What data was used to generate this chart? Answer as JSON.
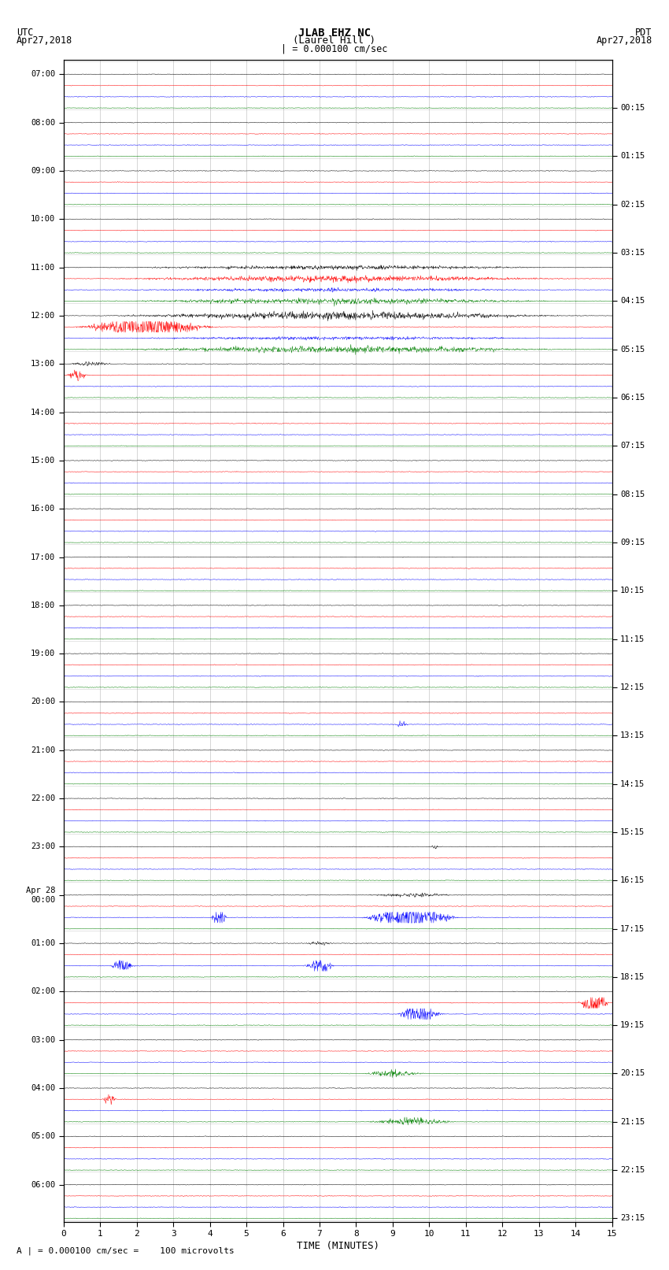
{
  "title_line1": "JLAB EHZ NC",
  "title_line2": "(Laurel Hill )",
  "scale_label": "| = 0.000100 cm/sec",
  "left_label": "UTC\nApr27,2018",
  "right_label": "PDT\nApr27,2018",
  "xlabel": "TIME (MINUTES)",
  "footer": "A | = 0.000100 cm/sec =    100 microvolts",
  "left_times": [
    "07:00",
    "08:00",
    "09:00",
    "10:00",
    "11:00",
    "12:00",
    "13:00",
    "14:00",
    "15:00",
    "16:00",
    "17:00",
    "18:00",
    "19:00",
    "20:00",
    "21:00",
    "22:00",
    "23:00",
    "Apr 28\n00:00",
    "01:00",
    "02:00",
    "03:00",
    "04:00",
    "05:00",
    "06:00"
  ],
  "right_times": [
    "00:15",
    "01:15",
    "02:15",
    "03:15",
    "04:15",
    "05:15",
    "06:15",
    "07:15",
    "08:15",
    "09:15",
    "10:15",
    "11:15",
    "12:15",
    "13:15",
    "14:15",
    "15:15",
    "16:15",
    "17:15",
    "18:15",
    "19:15",
    "20:15",
    "21:15",
    "22:15",
    "23:15"
  ],
  "n_rows": 24,
  "minutes_per_row": 15,
  "bg_color": "#ffffff",
  "colors_per_row": [
    "#000000",
    "#ff0000",
    "#0000ff",
    "#008000"
  ],
  "noise_amplitude": 0.018,
  "figwidth": 8.5,
  "figheight": 16.13,
  "dpi": 100
}
